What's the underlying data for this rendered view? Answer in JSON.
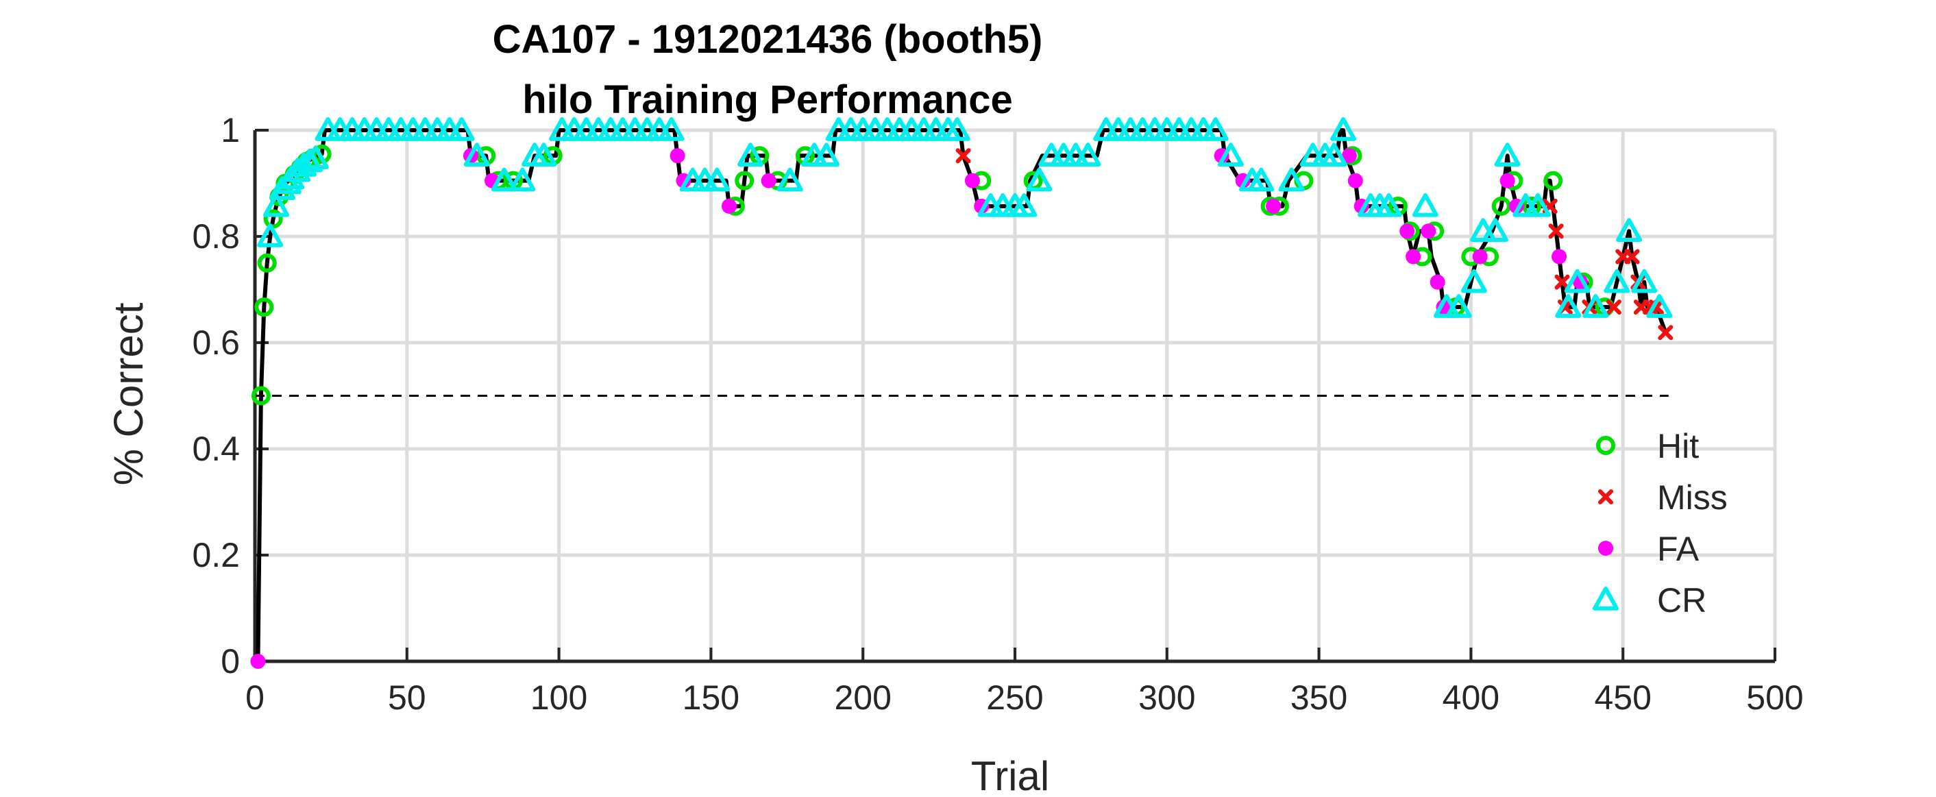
{
  "chart_data": {
    "type": "line",
    "title": "CA107 - 1912021436 (booth5)",
    "subtitle": "hilo Training Performance",
    "xlabel": "Trial",
    "ylabel": "% Correct",
    "xlim": [
      0,
      500
    ],
    "ylim": [
      0,
      1
    ],
    "xticks": [
      "0",
      "50",
      "100",
      "150",
      "200",
      "250",
      "300",
      "350",
      "400",
      "450",
      "500"
    ],
    "yticks": [
      "0",
      "0.2",
      "0.4",
      "0.6",
      "0.8",
      "1"
    ],
    "grid": true,
    "legend_position": "bottom-right",
    "chance_line": {
      "y": 0.5,
      "x": [
        0,
        465
      ],
      "style": "dashed"
    },
    "colors": {
      "Hit": "#00dd00",
      "Miss": "#ee1111",
      "FA": "#ff00ff",
      "CR": "#00eeee",
      "line": "#000000"
    },
    "legend": [
      {
        "label": "Hit",
        "marker": "circle"
      },
      {
        "label": "Miss",
        "marker": "x"
      },
      {
        "label": "FA",
        "marker": "dot"
      },
      {
        "label": "CR",
        "marker": "triangle"
      }
    ],
    "performance": [
      [
        1,
        0
      ],
      [
        2,
        0.5
      ],
      [
        3,
        0.667
      ],
      [
        4,
        0.75
      ],
      [
        5,
        0.8
      ],
      [
        6,
        0.833
      ],
      [
        7,
        0.857
      ],
      [
        8,
        0.875
      ],
      [
        9,
        0.889
      ],
      [
        10,
        0.9
      ],
      [
        12,
        0.909
      ],
      [
        13,
        0.917
      ],
      [
        14,
        0.923
      ],
      [
        15,
        0.929
      ],
      [
        17,
        0.941
      ],
      [
        19,
        0.947
      ],
      [
        21,
        0.952
      ],
      [
        22,
        0.955
      ],
      [
        23,
        1
      ],
      [
        70,
        1
      ],
      [
        71,
        0.952
      ],
      [
        76,
        0.952
      ],
      [
        77,
        0.905
      ],
      [
        90,
        0.905
      ],
      [
        92,
        0.952
      ],
      [
        99,
        0.952
      ],
      [
        100,
        1
      ],
      [
        138,
        1
      ],
      [
        139,
        0.952
      ],
      [
        140,
        0.905
      ],
      [
        155,
        0.905
      ],
      [
        156,
        0.857
      ],
      [
        160,
        0.857
      ],
      [
        161,
        0.905
      ],
      [
        162,
        0.952
      ],
      [
        168,
        0.952
      ],
      [
        169,
        0.905
      ],
      [
        178,
        0.905
      ],
      [
        179,
        0.952
      ],
      [
        190,
        0.952
      ],
      [
        191,
        1
      ],
      [
        232,
        1
      ],
      [
        233,
        0.952
      ],
      [
        236,
        0.905
      ],
      [
        238,
        0.857
      ],
      [
        254,
        0.857
      ],
      [
        255,
        0.905
      ],
      [
        259,
        0.952
      ],
      [
        277,
        0.952
      ],
      [
        279,
        1
      ],
      [
        318,
        1
      ],
      [
        319,
        0.952
      ],
      [
        324,
        0.905
      ],
      [
        333,
        0.905
      ],
      [
        334,
        0.857
      ],
      [
        338,
        0.857
      ],
      [
        340,
        0.905
      ],
      [
        346,
        0.952
      ],
      [
        356,
        0.952
      ],
      [
        357,
        1
      ],
      [
        358,
        1
      ],
      [
        359,
        0.952
      ],
      [
        362,
        0.905
      ],
      [
        363,
        0.857
      ],
      [
        378,
        0.857
      ],
      [
        379,
        0.81
      ],
      [
        381,
        0.762
      ],
      [
        383,
        0.81
      ],
      [
        386,
        0.81
      ],
      [
        387,
        0.762
      ],
      [
        390,
        0.714
      ],
      [
        391,
        0.667
      ],
      [
        398,
        0.667
      ],
      [
        400,
        0.714
      ],
      [
        402,
        0.762
      ],
      [
        407,
        0.81
      ],
      [
        410,
        0.857
      ],
      [
        412,
        0.952
      ],
      [
        413,
        0.905
      ],
      [
        415,
        0.857
      ],
      [
        424,
        0.857
      ],
      [
        425,
        0.905
      ],
      [
        426,
        0.905
      ],
      [
        427,
        0.857
      ],
      [
        428,
        0.81
      ],
      [
        429,
        0.762
      ],
      [
        430,
        0.714
      ],
      [
        431,
        0.667
      ],
      [
        434,
        0.667
      ],
      [
        435,
        0.714
      ],
      [
        438,
        0.714
      ],
      [
        439,
        0.667
      ],
      [
        446,
        0.667
      ],
      [
        448,
        0.714
      ],
      [
        450,
        0.762
      ],
      [
        452,
        0.81
      ],
      [
        453,
        0.762
      ],
      [
        455,
        0.714
      ],
      [
        456,
        0.667
      ],
      [
        457,
        0.714
      ],
      [
        458,
        0.667
      ],
      [
        461,
        0.667
      ],
      [
        464,
        0.619
      ]
    ],
    "series": [
      {
        "name": "Hit",
        "points": [
          [
            2,
            0.5
          ],
          [
            3,
            0.667
          ],
          [
            4,
            0.75
          ],
          [
            6,
            0.833
          ],
          [
            8,
            0.875
          ],
          [
            10,
            0.9
          ],
          [
            13,
            0.917
          ],
          [
            15,
            0.929
          ],
          [
            17,
            0.941
          ],
          [
            19,
            0.947
          ],
          [
            22,
            0.955
          ],
          [
            76,
            0.952
          ],
          [
            80,
            0.905
          ],
          [
            85,
            0.905
          ],
          [
            98,
            0.952
          ],
          [
            158,
            0.857
          ],
          [
            161,
            0.905
          ],
          [
            166,
            0.952
          ],
          [
            172,
            0.905
          ],
          [
            181,
            0.952
          ],
          [
            239,
            0.905
          ],
          [
            256,
            0.905
          ],
          [
            334,
            0.857
          ],
          [
            337,
            0.857
          ],
          [
            345,
            0.905
          ],
          [
            361,
            0.952
          ],
          [
            376,
            0.857
          ],
          [
            380,
            0.81
          ],
          [
            384,
            0.762
          ],
          [
            388,
            0.81
          ],
          [
            395,
            0.667
          ],
          [
            400,
            0.762
          ],
          [
            406,
            0.762
          ],
          [
            410,
            0.857
          ],
          [
            414,
            0.905
          ],
          [
            420,
            0.857
          ],
          [
            427,
            0.905
          ],
          [
            437,
            0.714
          ],
          [
            444,
            0.667
          ]
        ]
      },
      {
        "name": "Miss",
        "points": [
          [
            233,
            0.952
          ],
          [
            426,
            0.857
          ],
          [
            428,
            0.81
          ],
          [
            430,
            0.714
          ],
          [
            431,
            0.667
          ],
          [
            439,
            0.667
          ],
          [
            447,
            0.667
          ],
          [
            450,
            0.762
          ],
          [
            453,
            0.762
          ],
          [
            455,
            0.714
          ],
          [
            456,
            0.667
          ],
          [
            459,
            0.667
          ],
          [
            461,
            0.667
          ],
          [
            464,
            0.619
          ]
        ]
      },
      {
        "name": "FA",
        "points": [
          [
            1,
            0
          ],
          [
            71,
            0.952
          ],
          [
            78,
            0.905
          ],
          [
            139,
            0.952
          ],
          [
            141,
            0.905
          ],
          [
            156,
            0.857
          ],
          [
            169,
            0.905
          ],
          [
            236,
            0.905
          ],
          [
            239,
            0.857
          ],
          [
            318,
            0.952
          ],
          [
            325,
            0.905
          ],
          [
            335,
            0.857
          ],
          [
            360,
            0.952
          ],
          [
            362,
            0.905
          ],
          [
            364,
            0.857
          ],
          [
            379,
            0.81
          ],
          [
            381,
            0.762
          ],
          [
            386,
            0.81
          ],
          [
            389,
            0.714
          ],
          [
            391,
            0.667
          ],
          [
            403,
            0.762
          ],
          [
            412,
            0.905
          ],
          [
            415,
            0.857
          ],
          [
            429,
            0.762
          ],
          [
            436,
            0.714
          ]
        ]
      },
      {
        "name": "CR",
        "points": [
          [
            5,
            0.8
          ],
          [
            7,
            0.857
          ],
          [
            9,
            0.889
          ],
          [
            11,
            0.9
          ],
          [
            12,
            0.909
          ],
          [
            14,
            0.923
          ],
          [
            16,
            0.933
          ],
          [
            18,
            0.941
          ],
          [
            20,
            0.947
          ],
          [
            24,
            1
          ],
          [
            28,
            1
          ],
          [
            32,
            1
          ],
          [
            36,
            1
          ],
          [
            40,
            1
          ],
          [
            44,
            1
          ],
          [
            48,
            1
          ],
          [
            52,
            1
          ],
          [
            56,
            1
          ],
          [
            60,
            1
          ],
          [
            64,
            1
          ],
          [
            68,
            1
          ],
          [
            73,
            0.952
          ],
          [
            82,
            0.905
          ],
          [
            88,
            0.905
          ],
          [
            92,
            0.952
          ],
          [
            95,
            0.952
          ],
          [
            101,
            1
          ],
          [
            105,
            1
          ],
          [
            109,
            1
          ],
          [
            113,
            1
          ],
          [
            117,
            1
          ],
          [
            121,
            1
          ],
          [
            125,
            1
          ],
          [
            129,
            1
          ],
          [
            133,
            1
          ],
          [
            137,
            1
          ],
          [
            144,
            0.905
          ],
          [
            148,
            0.905
          ],
          [
            152,
            0.905
          ],
          [
            163,
            0.952
          ],
          [
            176,
            0.905
          ],
          [
            184,
            0.952
          ],
          [
            188,
            0.952
          ],
          [
            192,
            1
          ],
          [
            196,
            1
          ],
          [
            200,
            1
          ],
          [
            204,
            1
          ],
          [
            208,
            1
          ],
          [
            212,
            1
          ],
          [
            216,
            1
          ],
          [
            220,
            1
          ],
          [
            224,
            1
          ],
          [
            228,
            1
          ],
          [
            231,
            1
          ],
          [
            242,
            0.857
          ],
          [
            246,
            0.857
          ],
          [
            250,
            0.857
          ],
          [
            253,
            0.857
          ],
          [
            258,
            0.905
          ],
          [
            262,
            0.952
          ],
          [
            266,
            0.952
          ],
          [
            270,
            0.952
          ],
          [
            274,
            0.952
          ],
          [
            280,
            1
          ],
          [
            284,
            1
          ],
          [
            288,
            1
          ],
          [
            292,
            1
          ],
          [
            296,
            1
          ],
          [
            300,
            1
          ],
          [
            304,
            1
          ],
          [
            308,
            1
          ],
          [
            312,
            1
          ],
          [
            316,
            1
          ],
          [
            321,
            0.952
          ],
          [
            328,
            0.905
          ],
          [
            331,
            0.905
          ],
          [
            341,
            0.905
          ],
          [
            348,
            0.952
          ],
          [
            352,
            0.952
          ],
          [
            355,
            0.952
          ],
          [
            358,
            1
          ],
          [
            367,
            0.857
          ],
          [
            370,
            0.857
          ],
          [
            373,
            0.857
          ],
          [
            385,
            0.857
          ],
          [
            392,
            0.667
          ],
          [
            396,
            0.667
          ],
          [
            401,
            0.714
          ],
          [
            404,
            0.81
          ],
          [
            408,
            0.81
          ],
          [
            412,
            0.952
          ],
          [
            418,
            0.857
          ],
          [
            422,
            0.857
          ],
          [
            432,
            0.667
          ],
          [
            435,
            0.714
          ],
          [
            441,
            0.667
          ],
          [
            448,
            0.714
          ],
          [
            452,
            0.81
          ],
          [
            457,
            0.714
          ],
          [
            462,
            0.667
          ]
        ]
      }
    ]
  }
}
